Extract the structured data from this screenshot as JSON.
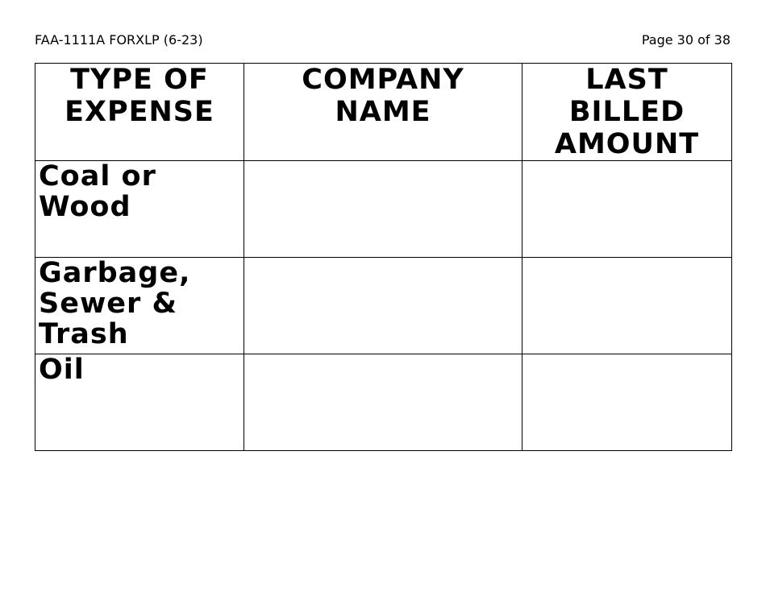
{
  "header": {
    "form_id": "FAA-1111A FORXLP (6-23)",
    "page": "Page 30 of 38"
  },
  "table": {
    "columns": [
      "TYPE OF EXPENSE",
      "COMPANY NAME",
      "LAST BILLED AMOUNT"
    ],
    "rows": [
      {
        "type": "Coal or Wood",
        "company": "",
        "amount": ""
      },
      {
        "type": "Garbage, Sewer & Trash",
        "company": "",
        "amount": ""
      },
      {
        "type": "Oil",
        "company": "",
        "amount": ""
      }
    ]
  }
}
